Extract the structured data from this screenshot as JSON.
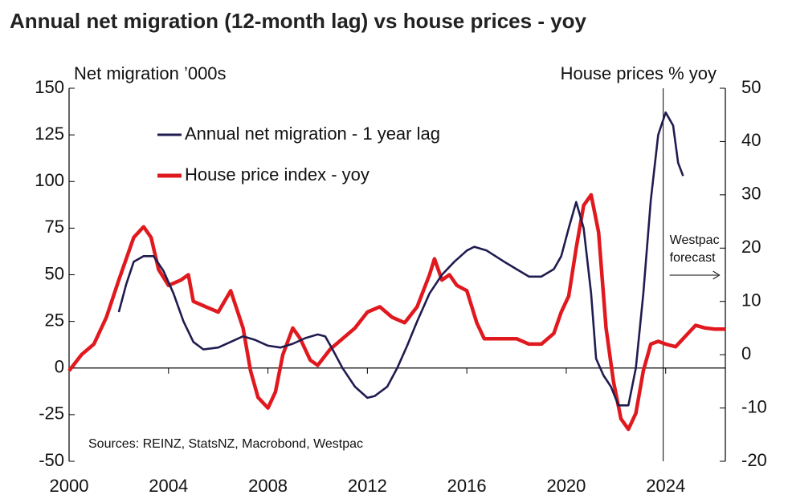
{
  "chart_data": {
    "type": "line",
    "title": "Annual net migration (12-month lag) vs house prices - yoy",
    "y_label": "Net migration ’000s",
    "y2_label": "House prices % yoy",
    "source": "Sources: REINZ, StatsNZ, Macrobond, Westpac",
    "annotation": {
      "lines": [
        "Westpac",
        "forecast"
      ],
      "x": 2023.9
    },
    "xlim": [
      2000,
      2026.4
    ],
    "xticks": [
      2000,
      2004,
      2008,
      2012,
      2016,
      2020,
      2024
    ],
    "ylim": [
      -50,
      150
    ],
    "yticks": [
      -50,
      -25,
      0,
      25,
      50,
      75,
      100,
      125,
      150
    ],
    "y2lim": [
      -20,
      50
    ],
    "y2ticks": [
      -20,
      -10,
      0,
      10,
      20,
      30,
      40,
      50
    ],
    "series": [
      {
        "name": "Annual net migration - 1 year lag",
        "color": "#1f1c50",
        "axis": "y",
        "x": [
          2002.0,
          2002.3,
          2002.6,
          2003.0,
          2003.4,
          2003.8,
          2004.2,
          2004.6,
          2005.0,
          2005.4,
          2006.0,
          2006.5,
          2007.0,
          2007.5,
          2008.0,
          2008.5,
          2009.0,
          2009.5,
          2010.0,
          2010.3,
          2010.6,
          2011.0,
          2011.5,
          2012.0,
          2012.3,
          2012.8,
          2013.2,
          2013.6,
          2014.0,
          2014.5,
          2015.0,
          2015.5,
          2016.0,
          2016.3,
          2016.8,
          2017.5,
          2018.0,
          2018.5,
          2019.0,
          2019.5,
          2019.8,
          2020.1,
          2020.4,
          2020.7,
          2021.0,
          2021.2,
          2021.5,
          2021.8,
          2022.1,
          2022.5,
          2022.8,
          2023.1,
          2023.4,
          2023.7,
          2024.0,
          2024.3,
          2024.5,
          2024.7
        ],
        "values": [
          30,
          45,
          57,
          60,
          60,
          52,
          40,
          25,
          14,
          10,
          11,
          14,
          17,
          15,
          12,
          11,
          13,
          16,
          18,
          17,
          10,
          0,
          -10,
          -16,
          -15,
          -10,
          0,
          12,
          25,
          40,
          50,
          57,
          63,
          65,
          63,
          57,
          53,
          49,
          49,
          53,
          60,
          75,
          89,
          75,
          40,
          5,
          -4,
          -10,
          -20,
          -20,
          0,
          40,
          90,
          125,
          137,
          130,
          110,
          103
        ]
      },
      {
        "name": "House price index - yoy",
        "color": "#e0191f",
        "axis": "y2",
        "x": [
          2000.0,
          2000.5,
          2001.0,
          2001.5,
          2002.0,
          2002.6,
          2003.0,
          2003.3,
          2003.6,
          2004.0,
          2004.5,
          2004.8,
          2005.0,
          2005.5,
          2006.0,
          2006.5,
          2007.0,
          2007.3,
          2007.6,
          2008.0,
          2008.3,
          2008.6,
          2009.0,
          2009.3,
          2009.7,
          2010.0,
          2010.5,
          2011.0,
          2011.5,
          2012.0,
          2012.5,
          2013.0,
          2013.5,
          2014.0,
          2014.5,
          2014.7,
          2015.0,
          2015.3,
          2015.6,
          2016.0,
          2016.4,
          2016.7,
          2017.0,
          2017.5,
          2018.0,
          2018.5,
          2019.0,
          2019.5,
          2019.8,
          2020.1,
          2020.4,
          2020.7,
          2021.0,
          2021.3,
          2021.6,
          2021.9,
          2022.2,
          2022.5,
          2022.8,
          2023.1,
          2023.4,
          2023.7,
          2024.0,
          2024.4,
          2024.8,
          2025.2,
          2025.6,
          2026.0,
          2026.4
        ],
        "values": [
          -3,
          0,
          2,
          7,
          14,
          22,
          24,
          22,
          16,
          13,
          14,
          15,
          10,
          9,
          8,
          12,
          5,
          -3,
          -8,
          -10,
          -7,
          0,
          5,
          3,
          -1,
          -2,
          1,
          3,
          5,
          8,
          9,
          7,
          6,
          9,
          15,
          18,
          14,
          15,
          13,
          12,
          6,
          3,
          3,
          3,
          3,
          2,
          2,
          4,
          8,
          11,
          20,
          28,
          30,
          23,
          5,
          -5,
          -12,
          -14,
          -11,
          -3,
          2,
          2.5,
          2,
          1.5,
          3.5,
          5.5,
          5,
          4.8,
          4.8
        ]
      }
    ]
  }
}
